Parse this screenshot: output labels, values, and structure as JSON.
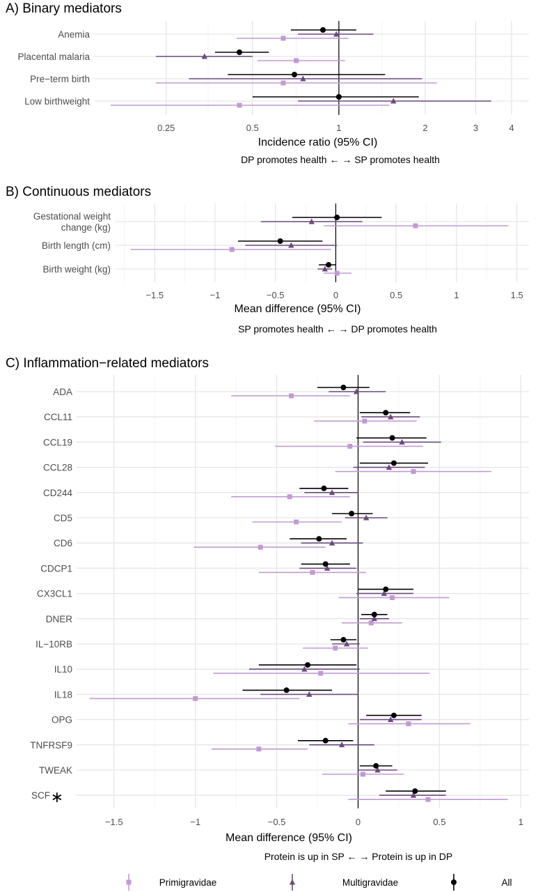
{
  "legend": [
    {
      "label": "Primigravidae",
      "color": "#c29ad3",
      "shape": "square"
    },
    {
      "label": "Multigravidae",
      "color": "#6b4a7d",
      "shape": "triangle"
    },
    {
      "label": "All",
      "color": "#000000",
      "shape": "circle"
    }
  ],
  "chart_data": [
    {
      "type": "forest",
      "title": "A) Binary mediators",
      "xlabel": "Incidence ratio (95% CI)",
      "note": "DP promotes health ← → SP promotes health",
      "scale": "log",
      "xlim": [
        0.14,
        4.6
      ],
      "reference": 1,
      "ticks": [
        {
          "v": 0.25,
          "l": "0.25"
        },
        {
          "v": 0.5,
          "l": "0.5"
        },
        {
          "v": 1,
          "l": "1"
        },
        {
          "v": 2,
          "l": "2"
        },
        {
          "v": 3,
          "l": "3"
        },
        {
          "v": 4,
          "l": "4"
        }
      ],
      "minor_ticks": [
        0.35,
        0.71,
        1.41
      ],
      "categories": [
        "Anemia",
        "Placental malaria",
        "Pre−term birth",
        "Low birthweight"
      ],
      "series": [
        {
          "name": "Primigravidae",
          "estimates": [
            [
              0.64,
              0.44,
              1.08
            ],
            [
              0.71,
              0.52,
              1.05
            ],
            [
              0.64,
              0.23,
              2.2
            ],
            [
              0.45,
              0.16,
              1.5
            ]
          ]
        },
        {
          "name": "Multigravidae",
          "estimates": [
            [
              0.98,
              0.72,
              1.32
            ],
            [
              0.34,
              0.23,
              0.5
            ],
            [
              0.75,
              0.3,
              1.95
            ],
            [
              1.55,
              0.72,
              3.4
            ]
          ]
        },
        {
          "name": "All",
          "estimates": [
            [
              0.88,
              0.68,
              1.15
            ],
            [
              0.45,
              0.37,
              0.57
            ],
            [
              0.7,
              0.41,
              1.45
            ],
            [
              1.0,
              0.5,
              1.9
            ]
          ]
        }
      ]
    },
    {
      "type": "forest",
      "title": "B) Continuous mediators",
      "xlabel": "Mean difference (95% CI)",
      "note": "SP promotes health     ← →     DP promotes health",
      "scale": "linear",
      "xlim": [
        -1.83,
        1.6
      ],
      "reference": 0,
      "ticks": [
        {
          "v": -1.5,
          "l": "−1.5"
        },
        {
          "v": -1,
          "l": "−1"
        },
        {
          "v": -0.5,
          "l": "−0.5"
        },
        {
          "v": 0,
          "l": "0"
        },
        {
          "v": 0.5,
          "l": "0.5"
        },
        {
          "v": 1,
          "l": "1"
        },
        {
          "v": 1.5,
          "l": "1.5"
        }
      ],
      "minor_ticks": [
        -1.75,
        -1.25,
        -0.75,
        -0.25,
        0.25,
        0.75,
        1.25
      ],
      "categories": [
        "Gestational weight\nchange (kg)",
        "Birth length (cm)",
        "Birth weight (kg)"
      ],
      "series": [
        {
          "name": "Primigravidae",
          "estimates": [
            [
              0.66,
              -0.1,
              1.43
            ],
            [
              -0.86,
              -1.7,
              -0.04
            ],
            [
              0.01,
              -0.1,
              0.13
            ]
          ]
        },
        {
          "name": "Multigravidae",
          "estimates": [
            [
              -0.2,
              -0.62,
              0.22
            ],
            [
              -0.37,
              -0.75,
              0.01
            ],
            [
              -0.09,
              -0.15,
              -0.03
            ]
          ]
        },
        {
          "name": "All",
          "estimates": [
            [
              0.01,
              -0.36,
              0.38
            ],
            [
              -0.46,
              -0.81,
              -0.11
            ],
            [
              -0.06,
              -0.14,
              0.0
            ]
          ]
        }
      ]
    },
    {
      "type": "forest",
      "title": "C) Inflammation−related mediators",
      "xlabel": "Mean difference (95% CI)",
      "note": "Protein is up in SP    ← →    Protein is up in DP",
      "scale": "linear",
      "xlim": [
        -1.73,
        1.05
      ],
      "reference": 0,
      "ticks": [
        {
          "v": -1.5,
          "l": "−1.5"
        },
        {
          "v": -1,
          "l": "−1"
        },
        {
          "v": -0.5,
          "l": "−0.5"
        },
        {
          "v": 0,
          "l": "0"
        },
        {
          "v": 0.5,
          "l": "0.5"
        },
        {
          "v": 1,
          "l": "1"
        }
      ],
      "minor_ticks": [
        -1.25,
        -0.75,
        -0.25,
        0.25,
        0.75
      ],
      "star_label": "∗",
      "starred": [
        "SCF"
      ],
      "categories": [
        "ADA",
        "CCL11",
        "CCL19",
        "CCL28",
        "CD244",
        "CD5",
        "CD6",
        "CDCP1",
        "CX3CL1",
        "DNER",
        "IL−10RB",
        "IL10",
        "IL18",
        "OPG",
        "TNFRSF9",
        "TWEAK",
        "SCF"
      ],
      "series": [
        {
          "name": "Primigravidae",
          "estimates": [
            [
              -0.41,
              -0.78,
              -0.05
            ],
            [
              0.04,
              -0.27,
              0.36
            ],
            [
              -0.05,
              -0.51,
              0.4
            ],
            [
              0.34,
              -0.14,
              0.82
            ],
            [
              -0.42,
              -0.78,
              -0.05
            ],
            [
              -0.38,
              -0.65,
              -0.1
            ],
            [
              -0.6,
              -1.01,
              -0.2
            ],
            [
              -0.28,
              -0.61,
              0.05
            ],
            [
              0.21,
              -0.12,
              0.56
            ],
            [
              0.08,
              -0.1,
              0.27
            ],
            [
              -0.14,
              -0.34,
              0.06
            ],
            [
              -0.23,
              -0.89,
              0.44
            ],
            [
              -1.0,
              -1.65,
              -0.36
            ],
            [
              0.31,
              -0.06,
              0.69
            ],
            [
              -0.61,
              -0.9,
              -0.31
            ],
            [
              0.03,
              -0.22,
              0.28
            ],
            [
              0.43,
              -0.06,
              0.92
            ]
          ]
        },
        {
          "name": "Multigravidae",
          "estimates": [
            [
              -0.01,
              -0.18,
              0.17
            ],
            [
              0.2,
              0.02,
              0.38
            ],
            [
              0.27,
              0.03,
              0.51
            ],
            [
              0.19,
              -0.03,
              0.41
            ],
            [
              -0.16,
              -0.33,
              0.0
            ],
            [
              0.05,
              -0.08,
              0.18
            ],
            [
              -0.16,
              -0.35,
              0.03
            ],
            [
              -0.19,
              -0.36,
              -0.01
            ],
            [
              0.16,
              -0.01,
              0.34
            ],
            [
              0.1,
              0.01,
              0.19
            ],
            [
              -0.07,
              -0.16,
              0.01
            ],
            [
              -0.33,
              -0.67,
              0.01
            ],
            [
              -0.3,
              -0.6,
              0.0
            ],
            [
              0.2,
              0.01,
              0.39
            ],
            [
              -0.1,
              -0.3,
              0.1
            ],
            [
              0.12,
              0.0,
              0.24
            ],
            [
              0.34,
              0.13,
              0.54
            ]
          ]
        },
        {
          "name": "All",
          "estimates": [
            [
              -0.09,
              -0.25,
              0.07
            ],
            [
              0.17,
              0.01,
              0.32
            ],
            [
              0.21,
              -0.01,
              0.42
            ],
            [
              0.22,
              0.01,
              0.43
            ],
            [
              -0.21,
              -0.36,
              -0.06
            ],
            [
              -0.04,
              -0.16,
              0.09
            ],
            [
              -0.24,
              -0.42,
              -0.07
            ],
            [
              -0.2,
              -0.35,
              -0.05
            ],
            [
              0.17,
              0.0,
              0.34
            ],
            [
              0.1,
              0.02,
              0.18
            ],
            [
              -0.09,
              -0.17,
              -0.01
            ],
            [
              -0.31,
              -0.61,
              -0.01
            ],
            [
              -0.44,
              -0.71,
              -0.16
            ],
            [
              0.22,
              0.05,
              0.39
            ],
            [
              -0.2,
              -0.37,
              -0.03
            ],
            [
              0.11,
              0.01,
              0.21
            ],
            [
              0.35,
              0.17,
              0.54
            ]
          ]
        }
      ]
    }
  ]
}
